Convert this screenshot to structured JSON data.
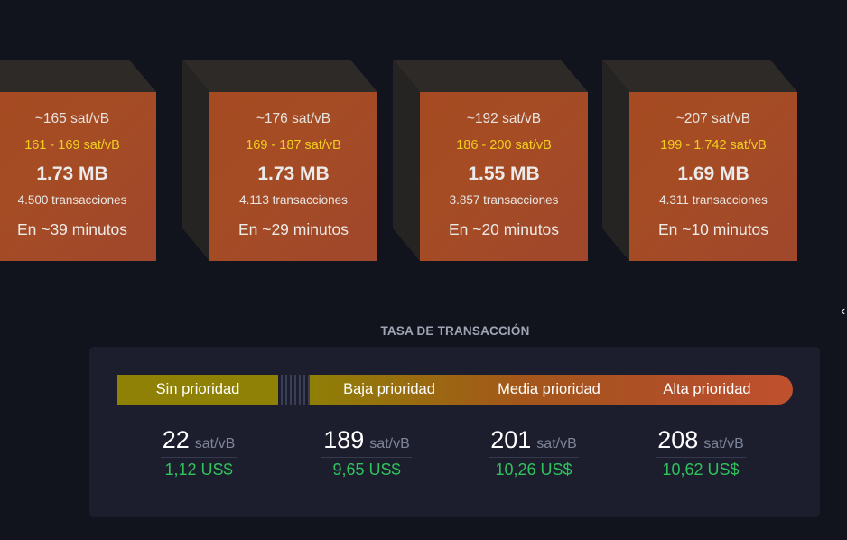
{
  "blocks": [
    {
      "median_fee": "~165 sat/vB",
      "fee_range": "161 - 169 sat/vB",
      "size": "1.73 MB",
      "tx_count": "4.500 transacciones",
      "eta": "En ~39 minutos"
    },
    {
      "median_fee": "~176 sat/vB",
      "fee_range": "169 - 187 sat/vB",
      "size": "1.73 MB",
      "tx_count": "4.113 transacciones",
      "eta": "En ~29 minutos"
    },
    {
      "median_fee": "~192 sat/vB",
      "fee_range": "186 - 200 sat/vB",
      "size": "1.55 MB",
      "tx_count": "3.857 transacciones",
      "eta": "En ~20 minutos"
    },
    {
      "median_fee": "~207 sat/vB",
      "fee_range": "199 - 1.742 sat/vB",
      "size": "1.69 MB",
      "tx_count": "4.311 transacciones",
      "eta": "En ~10 minutos"
    }
  ],
  "edge_mark": "‹",
  "fees": {
    "title": "TASA DE TRANSACCIÓN",
    "unit": "sat/vB",
    "priorities": [
      {
        "label": "Sin prioridad",
        "rate": "22",
        "fiat": "1,12 US$"
      },
      {
        "label": "Baja prioridad",
        "rate": "189",
        "fiat": "9,65 US$"
      },
      {
        "label": "Media prioridad",
        "rate": "201",
        "fiat": "10,26 US$"
      },
      {
        "label": "Alta prioridad",
        "rate": "208",
        "fiat": "10,62 US$"
      }
    ]
  },
  "colors": {
    "background": "#11131d",
    "block_face": "#a54a21",
    "fee_range": "#f2cf1d",
    "fiat_green": "#2fc35c",
    "no_priority_bar": "#8e8105"
  }
}
